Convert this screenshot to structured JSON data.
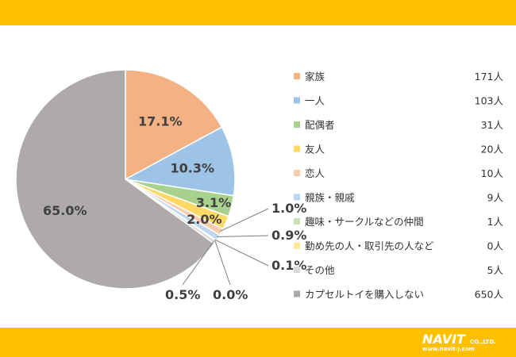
{
  "chart_data": {
    "type": "pie",
    "categories": [
      "家族",
      "一人",
      "配偶者",
      "友人",
      "恋人",
      "親族・親戚",
      "趣味・サークルなどの仲間",
      "勤め先の人・取引先の人など",
      "その他",
      "カプセルトイを購入しない"
    ],
    "values": [
      17.1,
      10.3,
      3.1,
      2.0,
      1.0,
      0.9,
      0.1,
      0.0,
      0.5,
      65.0
    ],
    "data_labels": [
      "17.1%",
      "10.3%",
      "3.1%",
      "2.0%",
      "1.0%",
      "0.9%",
      "0.1%",
      "0.0%",
      "0.5%",
      "65.0%"
    ],
    "counts": [
      "171人",
      "103人",
      "31人",
      "20人",
      "10人",
      "9人",
      "1人",
      "0人",
      "5人",
      "650人"
    ],
    "colors": [
      "#F4B183",
      "#9DC3E6",
      "#A9D18E",
      "#FFD966",
      "#F8CBAD",
      "#BDD7EE",
      "#C5E0B4",
      "#FFE699",
      "#D9D9D9",
      "#AEAAAA"
    ],
    "legend_position": "right",
    "start_angle": "12 o'clock",
    "direction": "clockwise"
  },
  "logo": {
    "name": "NAVIT",
    "suffix": "CO.,LTD.",
    "url": "www.navit-j.com"
  }
}
